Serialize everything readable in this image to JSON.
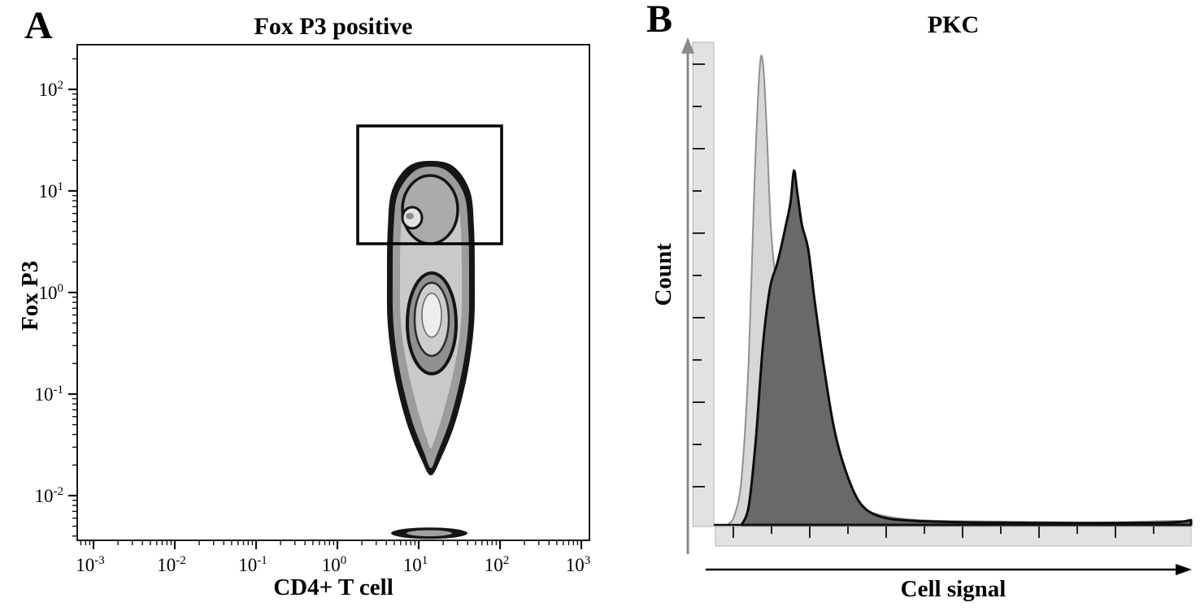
{
  "panel_a": {
    "label": "A",
    "title": "Fox P3 positive",
    "xlabel": "CD4+ T cell",
    "ylabel": "Fox P3"
  },
  "panel_b": {
    "label": "B",
    "title": "PKC",
    "xlabel": "Cell signal",
    "ylabel": "Count"
  },
  "chart_data": [
    {
      "panel": "A",
      "type": "contour",
      "title": "Fox P3 positive",
      "xlabel": "CD4+ T cell",
      "ylabel": "Fox P3",
      "x_scale": "log10",
      "y_scale": "log10",
      "x_axis_range_log": [
        -3.2,
        3.08
      ],
      "y_axis_range_log": [
        -2.42,
        2.44
      ],
      "x_major_tick_exponents": [
        -3,
        -2,
        -1,
        0,
        1,
        2,
        3
      ],
      "y_major_tick_exponents": [
        -2,
        -1,
        0,
        1,
        2
      ],
      "gate": {
        "shape": "rectangle",
        "x_log": [
          0.25,
          2.02
        ],
        "y_log": [
          0.48,
          1.64
        ]
      },
      "population": {
        "name": "main-population",
        "center_log_x": 1.15,
        "log_y_extent": [
          -1.8,
          1.3
        ],
        "colors": {
          "outer": "#161616",
          "mid": "#9c9c9c",
          "inner": "#c9c9c9"
        },
        "outline_stations": [
          [
            1.296,
            0
          ],
          [
            1.24,
            0.28
          ],
          [
            1.0,
            0.48
          ],
          [
            0.64,
            0.53
          ],
          [
            0.16,
            0.54
          ],
          [
            -0.32,
            0.53
          ],
          [
            -0.8,
            0.45
          ],
          [
            -1.28,
            0.3
          ],
          [
            -1.64,
            0.12
          ],
          [
            -1.8,
            0
          ]
        ],
        "mid_stations": [
          [
            1.24,
            0
          ],
          [
            1.184,
            0.22
          ],
          [
            0.96,
            0.41
          ],
          [
            0.616,
            0.46
          ],
          [
            0.16,
            0.47
          ],
          [
            -0.32,
            0.46
          ],
          [
            -0.784,
            0.38
          ],
          [
            -1.24,
            0.24
          ],
          [
            -1.584,
            0.08
          ],
          [
            -1.728,
            0
          ]
        ],
        "inner_stations": [
          [
            1.16,
            0
          ],
          [
            1.104,
            0.15
          ],
          [
            0.92,
            0.32
          ],
          [
            0.6,
            0.37
          ],
          [
            0.16,
            0.38
          ],
          [
            -0.304,
            0.37
          ],
          [
            -0.736,
            0.29
          ],
          [
            -1.16,
            0.16
          ],
          [
            -1.44,
            0.05
          ],
          [
            -1.536,
            0
          ]
        ],
        "rings": [
          {
            "cx": 1.14,
            "cy": 0.816,
            "rx": 0.34,
            "ry": 0.336,
            "stroke": "#141414",
            "sw": 3.5,
            "fill": "#ababab"
          },
          {
            "cx": 0.92,
            "cy": 0.736,
            "rx": 0.12,
            "ry": 0.104,
            "stroke": "#141414",
            "sw": 3,
            "fill": "#e2e2e2"
          },
          {
            "cx": 0.89,
            "cy": 0.752,
            "rx": 0.05,
            "ry": 0.032,
            "fill": "#8a8a8a"
          },
          {
            "cx": 1.16,
            "cy": -0.304,
            "rx": 0.3,
            "ry": 0.496,
            "stroke": "#141414",
            "sw": 4,
            "fill": "#909090"
          },
          {
            "cx": 1.16,
            "cy": -0.264,
            "rx": 0.21,
            "ry": 0.36,
            "stroke": "#2b2b2b",
            "sw": 2.5,
            "fill": "#cdcdcd"
          },
          {
            "cx": 1.16,
            "cy": -0.224,
            "rx": 0.12,
            "ry": 0.216,
            "stroke": "#666666",
            "sw": 1.5,
            "fill": "#ededed"
          }
        ],
        "debris": [
          {
            "cx": 1.13,
            "cy": -2.37,
            "rx": 0.47,
            "ry": 0.056,
            "fill": "#151515"
          },
          {
            "cx": 1.13,
            "cy": -2.37,
            "rx": 0.28,
            "ry": 0.03,
            "fill": "#a0a0a0"
          }
        ]
      }
    },
    {
      "panel": "B",
      "type": "histogram_overlay",
      "title": "PKC",
      "xlabel": "Cell signal",
      "ylabel": "Count",
      "x_tick_count": 12,
      "y_tick_count": 11,
      "axis_strip_color": "#e2e2e2",
      "axis_strip_border": "#b5b5b5",
      "baseline_color": "#111111",
      "y_arrow_color": "#8a8a8a",
      "x_arrow_color": "#000000",
      "series": [
        {
          "name": "light-gray-histogram",
          "fill": "#d7d7d7",
          "stroke": "#909090",
          "stroke_width": 2,
          "peak_x_norm": 0.1,
          "peak_height_norm": 0.97,
          "points": [
            [
              0.025,
              0
            ],
            [
              0.04,
              0.02
            ],
            [
              0.055,
              0.1
            ],
            [
              0.07,
              0.35
            ],
            [
              0.082,
              0.72
            ],
            [
              0.093,
              0.96
            ],
            [
              0.1,
              0.97
            ],
            [
              0.107,
              0.85
            ],
            [
              0.117,
              0.62
            ],
            [
              0.13,
              0.5
            ],
            [
              0.15,
              0.44
            ],
            [
              0.175,
              0.36
            ],
            [
              0.2,
              0.27
            ],
            [
              0.225,
              0.17
            ],
            [
              0.25,
              0.1
            ],
            [
              0.28,
              0.06
            ],
            [
              0.32,
              0.03
            ],
            [
              0.37,
              0.016
            ],
            [
              0.45,
              0.009
            ],
            [
              0.6,
              0.007
            ],
            [
              0.8,
              0.005
            ],
            [
              0.97,
              0.008
            ],
            [
              1,
              0.003
            ]
          ]
        },
        {
          "name": "dark-gray-histogram",
          "fill": "#696969",
          "stroke": "#0d0d0d",
          "stroke_width": 3,
          "peak_x_norm": 0.165,
          "peak_height_norm": 0.745,
          "points": [
            [
              0.055,
              0
            ],
            [
              0.07,
              0.04
            ],
            [
              0.085,
              0.18
            ],
            [
              0.1,
              0.38
            ],
            [
              0.115,
              0.5
            ],
            [
              0.13,
              0.55
            ],
            [
              0.148,
              0.63
            ],
            [
              0.158,
              0.68
            ],
            [
              0.165,
              0.745
            ],
            [
              0.172,
              0.7
            ],
            [
              0.182,
              0.63
            ],
            [
              0.195,
              0.58
            ],
            [
              0.21,
              0.46
            ],
            [
              0.23,
              0.32
            ],
            [
              0.25,
              0.2
            ],
            [
              0.275,
              0.11
            ],
            [
              0.305,
              0.045
            ],
            [
              0.345,
              0.018
            ],
            [
              0.41,
              0.009
            ],
            [
              0.55,
              0.005
            ],
            [
              0.75,
              0.004
            ],
            [
              0.95,
              0.005
            ],
            [
              1,
              0.01
            ]
          ]
        }
      ]
    }
  ]
}
